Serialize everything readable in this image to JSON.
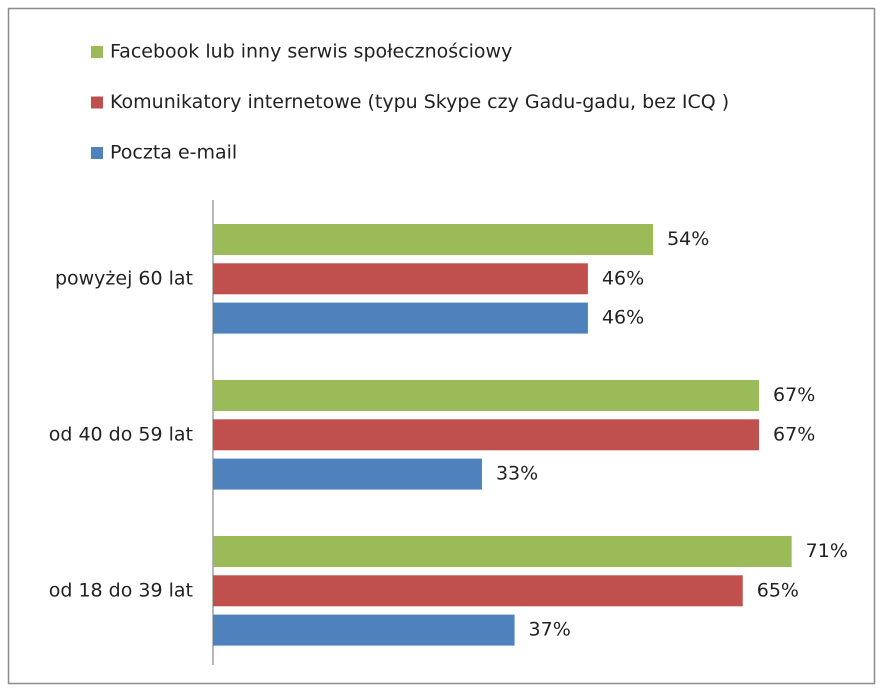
{
  "chart_data": {
    "type": "bar",
    "orientation": "horizontal",
    "categories": [
      "powyżej 60 lat",
      "od 40 do 59 lat",
      "od 18 do 39 lat"
    ],
    "series": [
      {
        "name": "Facebook lub inny serwis społecznościowy",
        "color": "#9bbb59",
        "values": [
          54,
          67,
          71
        ],
        "value_labels": [
          "54%",
          "67%",
          "71%"
        ]
      },
      {
        "name": "Komunikatory internetowe (typu Skype czy Gadu-gadu, bez ICQ )",
        "color": "#c0504d",
        "values": [
          46,
          67,
          65
        ],
        "value_labels": [
          "46%",
          "67%",
          "65%"
        ]
      },
      {
        "name": "Poczta e-mail",
        "color": "#4f81bd",
        "values": [
          46,
          33,
          37
        ],
        "value_labels": [
          "46%",
          "33%",
          "37%"
        ]
      }
    ],
    "legend": "top"
  }
}
